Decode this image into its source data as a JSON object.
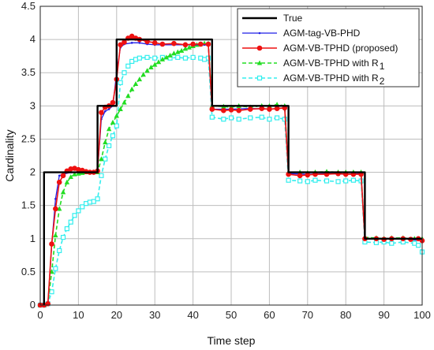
{
  "chart_data": {
    "type": "line",
    "title": "",
    "xlabel": "Time step",
    "ylabel": "Cardinality",
    "xlim": [
      0,
      100
    ],
    "ylim": [
      0,
      4.5
    ],
    "xticks": [
      0,
      10,
      20,
      30,
      40,
      50,
      60,
      70,
      80,
      90,
      100
    ],
    "yticks": [
      0,
      0.5,
      1,
      1.5,
      2,
      2.5,
      3,
      3.5,
      4,
      4.5
    ],
    "grid": true,
    "legend_position": "top-right",
    "legend": [
      {
        "label": "True",
        "sub": "",
        "color": "#000000",
        "marker": "none"
      },
      {
        "label": "AGM-tag-VB-PHD",
        "sub": "",
        "color": "#1f1fe6",
        "marker": "dot"
      },
      {
        "label": "AGM-VB-TPHD (proposed)",
        "sub": "",
        "color": "#ee1111",
        "marker": "circle"
      },
      {
        "label": "AGM-VB-TPHD with R",
        "sub": "1",
        "color": "#22dd22",
        "marker": "triangle"
      },
      {
        "label": "AGM-VB-TPHD with R",
        "sub": "2",
        "color": "#33eeee",
        "marker": "square"
      }
    ],
    "series": [
      {
        "name": "True",
        "color": "#000000",
        "points": [
          [
            1,
            0
          ],
          [
            1,
            2
          ],
          [
            15,
            2
          ],
          [
            15,
            3
          ],
          [
            20,
            3
          ],
          [
            20,
            4
          ],
          [
            45,
            4
          ],
          [
            45,
            3
          ],
          [
            65,
            3
          ],
          [
            65,
            2
          ],
          [
            85,
            2
          ],
          [
            85,
            1
          ],
          [
            100,
            1
          ]
        ]
      },
      {
        "name": "AGM-tag-VB-PHD",
        "color": "#1f1fe6",
        "points": [
          [
            0,
            0
          ],
          [
            1,
            0
          ],
          [
            2,
            0.02
          ],
          [
            3,
            0.9
          ],
          [
            4,
            1.6
          ],
          [
            5,
            1.95
          ],
          [
            6,
            1.97
          ],
          [
            8,
            2.0
          ],
          [
            10,
            2.0
          ],
          [
            12,
            2.0
          ],
          [
            14,
            2.0
          ],
          [
            15,
            2.02
          ],
          [
            16,
            2.8
          ],
          [
            17,
            2.92
          ],
          [
            18,
            2.95
          ],
          [
            19,
            3.0
          ],
          [
            20,
            3.5
          ],
          [
            21,
            3.88
          ],
          [
            22,
            3.93
          ],
          [
            24,
            3.95
          ],
          [
            26,
            3.95
          ],
          [
            28,
            3.93
          ],
          [
            30,
            3.92
          ],
          [
            35,
            3.92
          ],
          [
            40,
            3.92
          ],
          [
            43,
            3.92
          ],
          [
            44,
            3.92
          ],
          [
            45,
            2.95
          ],
          [
            50,
            2.95
          ],
          [
            55,
            2.96
          ],
          [
            60,
            2.95
          ],
          [
            64,
            2.97
          ],
          [
            65,
            1.98
          ],
          [
            70,
            1.97
          ],
          [
            75,
            1.98
          ],
          [
            80,
            1.97
          ],
          [
            84,
            1.98
          ],
          [
            85,
            1.0
          ],
          [
            90,
            1.0
          ],
          [
            95,
            1.0
          ],
          [
            100,
            0.97
          ]
        ]
      },
      {
        "name": "AGM-VB-TPHD (proposed)",
        "color": "#ee1111",
        "points": [
          [
            0,
            0
          ],
          [
            1,
            0
          ],
          [
            2,
            0.02
          ],
          [
            3,
            0.92
          ],
          [
            4,
            1.45
          ],
          [
            5,
            1.85
          ],
          [
            6,
            1.95
          ],
          [
            7,
            2.02
          ],
          [
            8,
            2.05
          ],
          [
            9,
            2.06
          ],
          [
            10,
            2.04
          ],
          [
            11,
            2.03
          ],
          [
            12,
            2.01
          ],
          [
            13,
            2.0
          ],
          [
            14,
            2.0
          ],
          [
            15,
            2.02
          ],
          [
            16,
            2.9
          ],
          [
            17,
            2.98
          ],
          [
            18,
            3.0
          ],
          [
            19,
            3.05
          ],
          [
            20,
            3.4
          ],
          [
            21,
            3.92
          ],
          [
            22,
            3.96
          ],
          [
            23,
            4.02
          ],
          [
            24,
            4.05
          ],
          [
            25,
            4.02
          ],
          [
            26,
            4.0
          ],
          [
            28,
            3.97
          ],
          [
            30,
            3.95
          ],
          [
            32,
            3.93
          ],
          [
            35,
            3.94
          ],
          [
            38,
            3.92
          ],
          [
            40,
            3.93
          ],
          [
            42,
            3.93
          ],
          [
            44,
            3.93
          ],
          [
            45,
            2.95
          ],
          [
            48,
            2.93
          ],
          [
            50,
            2.94
          ],
          [
            52,
            2.93
          ],
          [
            55,
            2.95
          ],
          [
            58,
            2.96
          ],
          [
            60,
            2.95
          ],
          [
            62,
            2.96
          ],
          [
            64,
            2.97
          ],
          [
            65,
            1.97
          ],
          [
            68,
            1.95
          ],
          [
            70,
            1.96
          ],
          [
            72,
            1.97
          ],
          [
            75,
            1.97
          ],
          [
            78,
            1.98
          ],
          [
            80,
            1.97
          ],
          [
            82,
            1.97
          ],
          [
            84,
            1.97
          ],
          [
            85,
            1.0
          ],
          [
            88,
            1.0
          ],
          [
            90,
            0.99
          ],
          [
            92,
            1.0
          ],
          [
            95,
            1.0
          ],
          [
            97,
            0.99
          ],
          [
            99,
            1.0
          ],
          [
            100,
            0.97
          ]
        ]
      },
      {
        "name": "AGM-VB-TPHD with R1",
        "color": "#22dd22",
        "points": [
          [
            0,
            0
          ],
          [
            1,
            0
          ],
          [
            2,
            0.03
          ],
          [
            3,
            0.5
          ],
          [
            4,
            1.05
          ],
          [
            5,
            1.45
          ],
          [
            6,
            1.7
          ],
          [
            7,
            1.85
          ],
          [
            8,
            1.93
          ],
          [
            9,
            1.97
          ],
          [
            10,
            1.98
          ],
          [
            11,
            1.99
          ],
          [
            12,
            2.0
          ],
          [
            13,
            2.0
          ],
          [
            14,
            2.0
          ],
          [
            15,
            2.0
          ],
          [
            16,
            2.2
          ],
          [
            17,
            2.45
          ],
          [
            18,
            2.65
          ],
          [
            19,
            2.75
          ],
          [
            20,
            2.85
          ],
          [
            21,
            2.95
          ],
          [
            22,
            3.05
          ],
          [
            23,
            3.15
          ],
          [
            24,
            3.25
          ],
          [
            25,
            3.33
          ],
          [
            26,
            3.4
          ],
          [
            27,
            3.47
          ],
          [
            28,
            3.53
          ],
          [
            29,
            3.58
          ],
          [
            30,
            3.62
          ],
          [
            31,
            3.66
          ],
          [
            32,
            3.7
          ],
          [
            33,
            3.73
          ],
          [
            34,
            3.76
          ],
          [
            35,
            3.79
          ],
          [
            36,
            3.81
          ],
          [
            37,
            3.83
          ],
          [
            38,
            3.86
          ],
          [
            39,
            3.88
          ],
          [
            40,
            3.9
          ],
          [
            41,
            3.92
          ],
          [
            42,
            3.93
          ],
          [
            43,
            3.94
          ],
          [
            44,
            3.94
          ],
          [
            45,
            3.0
          ],
          [
            48,
            2.99
          ],
          [
            50,
            2.98
          ],
          [
            52,
            3.0
          ],
          [
            55,
            2.98
          ],
          [
            58,
            3.0
          ],
          [
            60,
            3.0
          ],
          [
            62,
            3.02
          ],
          [
            64,
            3.0
          ],
          [
            65,
            2.0
          ],
          [
            68,
            2.0
          ],
          [
            70,
            1.99
          ],
          [
            72,
            2.0
          ],
          [
            75,
            2.01
          ],
          [
            78,
            2.0
          ],
          [
            80,
            2.0
          ],
          [
            82,
            2.0
          ],
          [
            84,
            2.0
          ],
          [
            85,
            1.02
          ],
          [
            88,
            1.01
          ],
          [
            90,
            1.0
          ],
          [
            92,
            1.01
          ],
          [
            95,
            1.01
          ],
          [
            98,
            1.0
          ],
          [
            100,
            1.0
          ]
        ]
      },
      {
        "name": "AGM-VB-TPHD with R2",
        "color": "#33eeee",
        "points": [
          [
            0,
            0
          ],
          [
            1,
            0
          ],
          [
            2,
            0.02
          ],
          [
            3,
            0.2
          ],
          [
            4,
            0.55
          ],
          [
            5,
            0.82
          ],
          [
            6,
            1.02
          ],
          [
            7,
            1.15
          ],
          [
            8,
            1.25
          ],
          [
            9,
            1.35
          ],
          [
            10,
            1.42
          ],
          [
            11,
            1.48
          ],
          [
            12,
            1.53
          ],
          [
            13,
            1.55
          ],
          [
            14,
            1.56
          ],
          [
            15,
            1.6
          ],
          [
            16,
            1.95
          ],
          [
            17,
            2.2
          ],
          [
            18,
            2.4
          ],
          [
            19,
            2.55
          ],
          [
            20,
            2.7
          ],
          [
            21,
            3.35
          ],
          [
            22,
            3.5
          ],
          [
            23,
            3.6
          ],
          [
            24,
            3.67
          ],
          [
            25,
            3.7
          ],
          [
            26,
            3.72
          ],
          [
            28,
            3.73
          ],
          [
            30,
            3.72
          ],
          [
            32,
            3.73
          ],
          [
            34,
            3.72
          ],
          [
            36,
            3.73
          ],
          [
            38,
            3.72
          ],
          [
            40,
            3.73
          ],
          [
            42,
            3.72
          ],
          [
            43,
            3.7
          ],
          [
            44,
            3.72
          ],
          [
            45,
            2.83
          ],
          [
            48,
            2.8
          ],
          [
            50,
            2.82
          ],
          [
            52,
            2.8
          ],
          [
            55,
            2.82
          ],
          [
            58,
            2.83
          ],
          [
            60,
            2.8
          ],
          [
            62,
            2.82
          ],
          [
            64,
            2.8
          ],
          [
            65,
            1.88
          ],
          [
            68,
            1.87
          ],
          [
            70,
            1.86
          ],
          [
            72,
            1.88
          ],
          [
            75,
            1.87
          ],
          [
            78,
            1.86
          ],
          [
            80,
            1.87
          ],
          [
            82,
            1.88
          ],
          [
            84,
            1.87
          ],
          [
            85,
            0.95
          ],
          [
            88,
            0.94
          ],
          [
            90,
            0.95
          ],
          [
            92,
            0.93
          ],
          [
            95,
            0.95
          ],
          [
            98,
            0.93
          ],
          [
            99,
            0.9
          ],
          [
            100,
            0.8
          ]
        ]
      }
    ]
  }
}
